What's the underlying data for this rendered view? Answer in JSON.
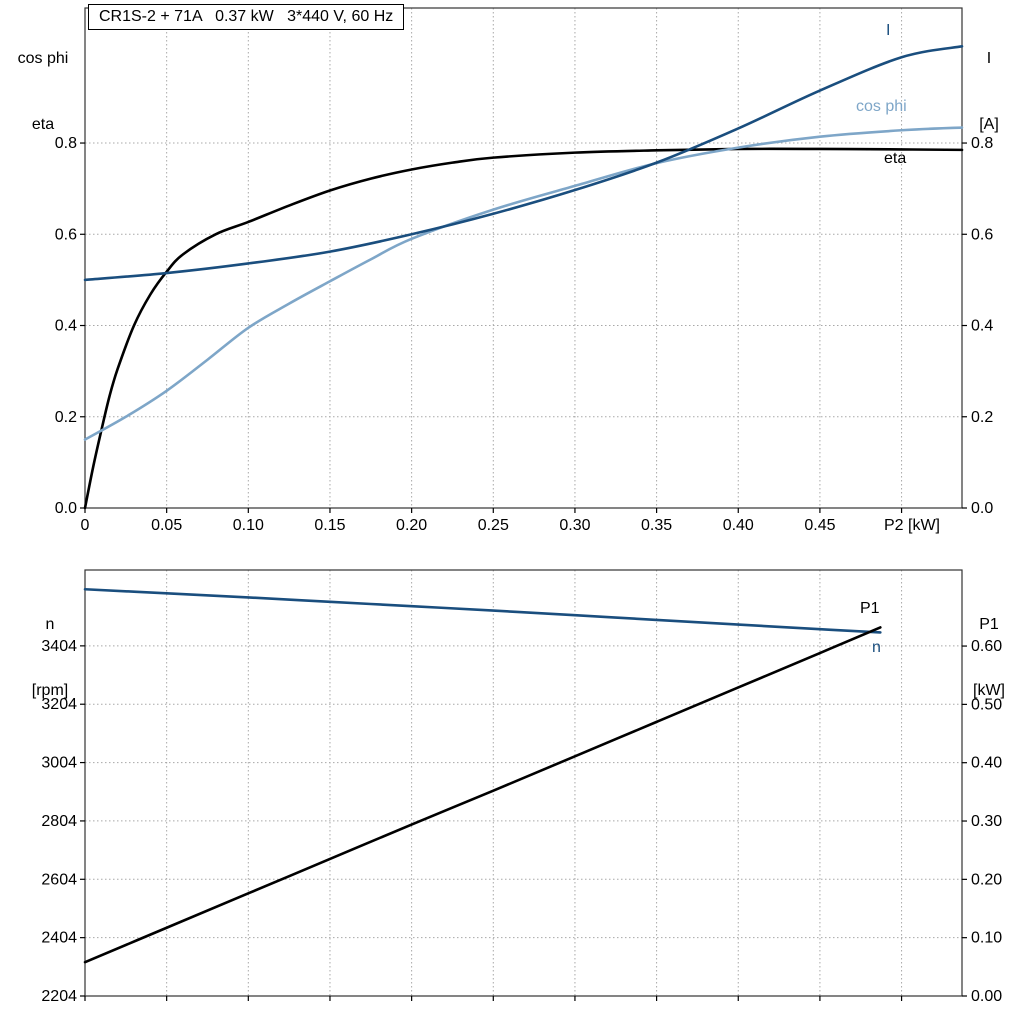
{
  "colors": {
    "dark_blue": "#1a4e7e",
    "light_blue": "#7ea6c8",
    "black": "#000000",
    "grid": "#a8a8a8"
  },
  "chart_data": [
    {
      "type": "line",
      "title": "CR1S-2 + 71A   0.37 kW   3*440 V, 60 Hz",
      "x_axis": {
        "label": "P2 [kW]",
        "range": [
          0,
          0.537
        ],
        "ticks": [
          0,
          0.05,
          0.1,
          0.15,
          0.2,
          0.25,
          0.3,
          0.35,
          0.4,
          0.45
        ],
        "tick_labels": [
          "0",
          "0.05",
          "0.10",
          "0.15",
          "0.20",
          "0.25",
          "0.30",
          "0.35",
          "0.40",
          "0.45"
        ],
        "grid_extra": [
          0.5
        ]
      },
      "left_axis": {
        "title_lines": [
          "cos phi",
          "eta"
        ],
        "range": [
          0,
          1.096
        ],
        "ticks": [
          0.0,
          0.2,
          0.4,
          0.6,
          0.8
        ],
        "tick_labels": [
          "0.0",
          "0.2",
          "0.4",
          "0.6",
          "0.8"
        ]
      },
      "right_axis": {
        "title_lines": [
          "I",
          "[A]"
        ],
        "range": [
          0,
          1.096
        ],
        "ticks": [
          0.0,
          0.2,
          0.4,
          0.6,
          0.8
        ],
        "tick_labels": [
          "0.0",
          "0.2",
          "0.4",
          "0.6",
          "0.8"
        ]
      },
      "series": [
        {
          "name": "eta",
          "color": "#000000",
          "axis": "left",
          "points": [
            [
              0,
              0
            ],
            [
              0.005,
              0.09
            ],
            [
              0.01,
              0.17
            ],
            [
              0.015,
              0.245
            ],
            [
              0.02,
              0.305
            ],
            [
              0.03,
              0.4
            ],
            [
              0.04,
              0.468
            ],
            [
              0.05,
              0.518
            ],
            [
              0.06,
              0.556
            ],
            [
              0.08,
              0.6
            ],
            [
              0.1,
              0.627
            ],
            [
              0.125,
              0.663
            ],
            [
              0.15,
              0.696
            ],
            [
              0.175,
              0.722
            ],
            [
              0.2,
              0.742
            ],
            [
              0.225,
              0.757
            ],
            [
              0.25,
              0.768
            ],
            [
              0.3,
              0.779
            ],
            [
              0.35,
              0.784
            ],
            [
              0.4,
              0.787
            ],
            [
              0.45,
              0.787
            ],
            [
              0.5,
              0.786
            ],
            [
              0.537,
              0.785
            ]
          ]
        },
        {
          "name": "cos phi",
          "color": "#7ea6c8",
          "axis": "left",
          "points": [
            [
              0,
              0.15
            ],
            [
              0.025,
              0.2
            ],
            [
              0.05,
              0.257
            ],
            [
              0.075,
              0.325
            ],
            [
              0.1,
              0.395
            ],
            [
              0.125,
              0.448
            ],
            [
              0.15,
              0.497
            ],
            [
              0.175,
              0.545
            ],
            [
              0.2,
              0.59
            ],
            [
              0.25,
              0.654
            ],
            [
              0.3,
              0.706
            ],
            [
              0.35,
              0.756
            ],
            [
              0.4,
              0.79
            ],
            [
              0.45,
              0.814
            ],
            [
              0.5,
              0.828
            ],
            [
              0.537,
              0.834
            ]
          ]
        },
        {
          "name": "I",
          "color": "#1a4e7e",
          "axis": "left",
          "points": [
            [
              0,
              0.5
            ],
            [
              0.05,
              0.515
            ],
            [
              0.1,
              0.536
            ],
            [
              0.15,
              0.562
            ],
            [
              0.2,
              0.6
            ],
            [
              0.25,
              0.645
            ],
            [
              0.3,
              0.697
            ],
            [
              0.35,
              0.757
            ],
            [
              0.4,
              0.832
            ],
            [
              0.45,
              0.915
            ],
            [
              0.5,
              0.988
            ],
            [
              0.537,
              1.012
            ]
          ]
        }
      ]
    },
    {
      "type": "line",
      "title": "",
      "x_axis": {
        "label": "",
        "range": [
          0,
          0.537
        ],
        "ticks": [
          0,
          0.05,
          0.1,
          0.15,
          0.2,
          0.25,
          0.3,
          0.35,
          0.4,
          0.45
        ],
        "tick_labels": [],
        "grid_extra": [
          0.5
        ]
      },
      "left_axis": {
        "title_lines": [
          "n",
          "[rpm]"
        ],
        "range": [
          2204,
          3664
        ],
        "ticks": [
          2204,
          2404,
          2604,
          2804,
          3004,
          3204,
          3404
        ],
        "tick_labels": [
          "2204",
          "2404",
          "2604",
          "2804",
          "3004",
          "3204",
          "3404"
        ]
      },
      "right_axis": {
        "title_lines": [
          "P1",
          "[kW]"
        ],
        "range": [
          0,
          0.7304
        ],
        "ticks": [
          0.0,
          0.1,
          0.2,
          0.3,
          0.4,
          0.5,
          0.6
        ],
        "tick_labels": [
          "0.00",
          "0.10",
          "0.20",
          "0.30",
          "0.40",
          "0.50",
          "0.60"
        ]
      },
      "series": [
        {
          "name": "n",
          "color": "#1a4e7e",
          "axis": "left",
          "points": [
            [
              0,
              3598
            ],
            [
              0.05,
              3584
            ],
            [
              0.1,
              3570
            ],
            [
              0.15,
              3555
            ],
            [
              0.2,
              3540
            ],
            [
              0.25,
              3525
            ],
            [
              0.3,
              3509
            ],
            [
              0.35,
              3493
            ],
            [
              0.4,
              3477
            ],
            [
              0.45,
              3461
            ],
            [
              0.487,
              3450
            ]
          ]
        },
        {
          "name": "P1",
          "color": "#000000",
          "axis": "right",
          "points": [
            [
              0,
              0.058
            ],
            [
              0.05,
              0.117
            ],
            [
              0.1,
              0.176
            ],
            [
              0.15,
              0.235
            ],
            [
              0.2,
              0.294
            ],
            [
              0.25,
              0.352
            ],
            [
              0.3,
              0.411
            ],
            [
              0.35,
              0.47
            ],
            [
              0.4,
              0.529
            ],
            [
              0.45,
              0.588
            ],
            [
              0.487,
              0.632
            ]
          ]
        }
      ]
    }
  ]
}
